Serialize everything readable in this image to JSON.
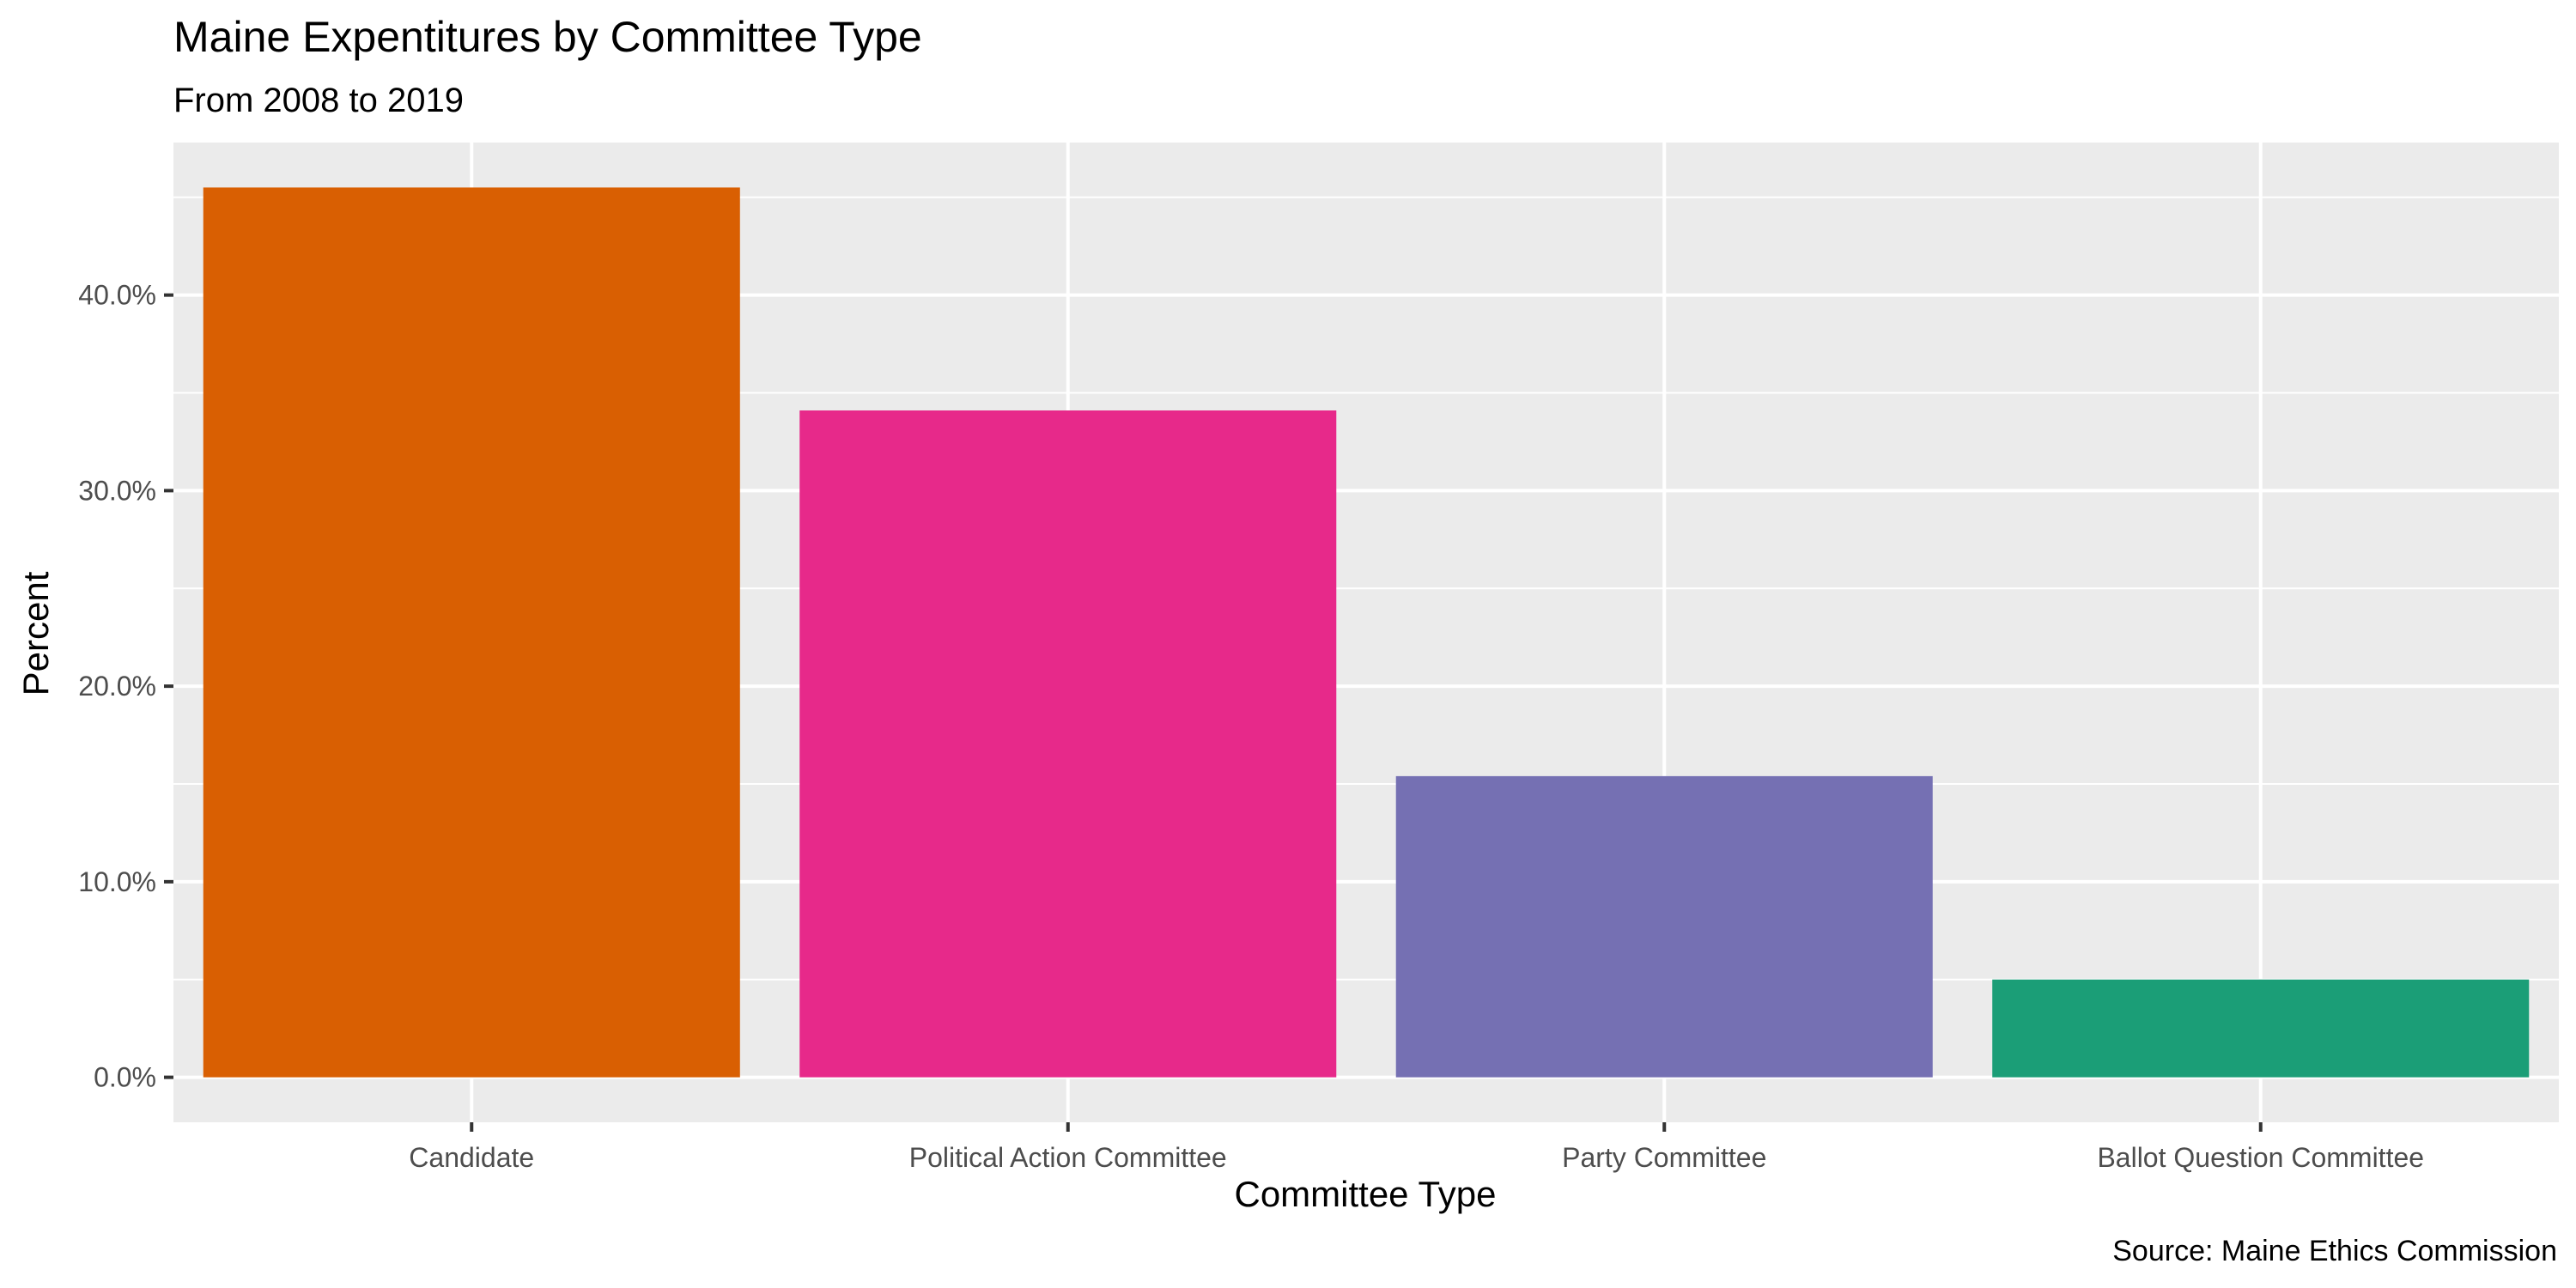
{
  "chart_data": {
    "type": "bar",
    "title": "Maine Expentitures by Committee Type",
    "subtitle": "From 2008 to 2019",
    "xlabel": "Committee Type",
    "ylabel": "Percent",
    "caption": "Source: Maine Ethics Commission",
    "categories": [
      "Candidate",
      "Political Action Committee",
      "Party Committee",
      "Ballot Question Committee"
    ],
    "values": [
      45.5,
      34.1,
      15.4,
      5.0
    ],
    "colors": [
      "#D95F02",
      "#E7298A",
      "#7570B3",
      "#1B9E77"
    ],
    "ylim": [
      -2.3,
      47.8
    ],
    "yticks": [
      0,
      10,
      20,
      30,
      40
    ],
    "ytick_labels": [
      "0.0%",
      "10.0%",
      "20.0%",
      "30.0%",
      "40.0%"
    ],
    "grid": true,
    "legend": "none",
    "panel_color": "#EBEBEB",
    "grid_color": "#FFFFFF"
  }
}
